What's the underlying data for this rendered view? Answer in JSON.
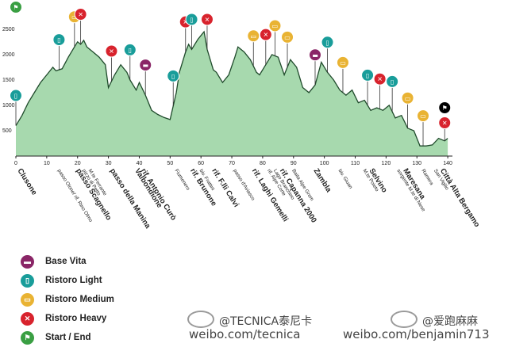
{
  "chart_data": {
    "type": "area",
    "xlim": [
      0,
      141
    ],
    "ylim": [
      0,
      2700
    ],
    "x_ticks": [
      0,
      10,
      20,
      30,
      40,
      50,
      60,
      70,
      80,
      90,
      100,
      110,
      120,
      130,
      140
    ],
    "y_ticks": [
      500,
      1000,
      1500,
      2000,
      2500
    ],
    "grid": false,
    "fill_color": "#a7d9ae",
    "line_color": "#1f4a2b",
    "profile": {
      "x": [
        0,
        2,
        4,
        6,
        8,
        10,
        12,
        13,
        15,
        17,
        19,
        20,
        21,
        22,
        23,
        25,
        27,
        29,
        30,
        32,
        34,
        36,
        37,
        39,
        40,
        42,
        44,
        46,
        48,
        50,
        52,
        53,
        55,
        56,
        57,
        59,
        61,
        62,
        64,
        65,
        67,
        69,
        71,
        72,
        74,
        76,
        78,
        79,
        81,
        83,
        85,
        87,
        89,
        91,
        93,
        95,
        97,
        99,
        101,
        103,
        105,
        107,
        109,
        111,
        113,
        115,
        117,
        119,
        121,
        123,
        125,
        127,
        129,
        131,
        133,
        135,
        137,
        139,
        140
      ],
      "y": [
        600,
        800,
        1050,
        1250,
        1450,
        1600,
        1750,
        1680,
        1720,
        1950,
        2150,
        2250,
        2200,
        2280,
        2150,
        2050,
        1950,
        1800,
        1350,
        1600,
        1800,
        1650,
        1500,
        1300,
        1450,
        1200,
        900,
        820,
        760,
        720,
        1250,
        1650,
        2050,
        2200,
        2100,
        2300,
        2450,
        2100,
        1700,
        1650,
        1450,
        1600,
        1950,
        2150,
        2050,
        1900,
        1650,
        1600,
        1800,
        2000,
        1950,
        1600,
        1900,
        1750,
        1350,
        1250,
        1400,
        1850,
        1650,
        1500,
        1300,
        1200,
        1300,
        1050,
        1100,
        900,
        950,
        900,
        1000,
        750,
        800,
        550,
        500,
        200,
        200,
        220,
        350,
        300,
        350
      ]
    },
    "stops": [
      {
        "km": 0,
        "type": "light",
        "icon": "cup-icon"
      },
      {
        "km": 0,
        "type": "start",
        "icon": "flag-icon"
      },
      {
        "km": 14,
        "type": "light",
        "icon": "cup-icon"
      },
      {
        "km": 19,
        "type": "medium",
        "icon": "tray-icon"
      },
      {
        "km": 21,
        "type": "heavy",
        "icon": "fork-knife-icon"
      },
      {
        "km": 31,
        "type": "heavy",
        "icon": "fork-knife-icon"
      },
      {
        "km": 37,
        "type": "light",
        "icon": "cup-icon"
      },
      {
        "km": 42,
        "type": "base",
        "icon": "bed-icon"
      },
      {
        "km": 51,
        "type": "light",
        "icon": "cup-icon"
      },
      {
        "km": 55,
        "type": "heavy",
        "icon": "fork-knife-icon"
      },
      {
        "km": 57,
        "type": "light",
        "icon": "cup-icon"
      },
      {
        "km": 62,
        "type": "heavy",
        "icon": "fork-knife-icon"
      },
      {
        "km": 77,
        "type": "medium",
        "icon": "tray-icon"
      },
      {
        "km": 81,
        "type": "heavy",
        "icon": "fork-knife-icon"
      },
      {
        "km": 84,
        "type": "medium",
        "icon": "tray-icon"
      },
      {
        "km": 88,
        "type": "medium",
        "icon": "tray-icon"
      },
      {
        "km": 97,
        "type": "base",
        "icon": "bed-icon"
      },
      {
        "km": 101,
        "type": "light",
        "icon": "cup-icon"
      },
      {
        "km": 106,
        "type": "medium",
        "icon": "tray-icon"
      },
      {
        "km": 114,
        "type": "light",
        "icon": "cup-icon"
      },
      {
        "km": 118,
        "type": "heavy",
        "icon": "fork-knife-icon"
      },
      {
        "km": 122,
        "type": "light",
        "icon": "cup-icon"
      },
      {
        "km": 127,
        "type": "medium",
        "icon": "tray-icon"
      },
      {
        "km": 132,
        "type": "medium",
        "icon": "tray-icon"
      },
      {
        "km": 139,
        "type": "heavy",
        "icon": "fork-knife-icon"
      },
      {
        "km": 139,
        "type": "end",
        "icon": "flag-icon"
      }
    ],
    "places": [
      {
        "km": 0,
        "name": "Clusone",
        "level": "major"
      },
      {
        "km": 13,
        "name": "passo Olone/ rif. Rino Olmo",
        "level": "minor"
      },
      {
        "km": 19,
        "name": "passo Scagnello",
        "level": "major"
      },
      {
        "km": 21,
        "name": "pizzo di Petto",
        "level": "minor"
      },
      {
        "km": 23,
        "name": "M.te Ferrante",
        "level": "minor"
      },
      {
        "km": 30,
        "name": "passo della Manina",
        "level": "major"
      },
      {
        "km": 38,
        "name": "Valbondione",
        "level": "major"
      },
      {
        "km": 40,
        "name": "rif. Antonio Curò",
        "level": "major"
      },
      {
        "km": 51,
        "name": "Fiumenero",
        "level": "minor"
      },
      {
        "km": 56,
        "name": "rif. Brunone",
        "level": "major"
      },
      {
        "km": 59,
        "name": "biv. Frattini",
        "level": "minor"
      },
      {
        "km": 63,
        "name": "rif. F.lli Calvi",
        "level": "major"
      },
      {
        "km": 70,
        "name": "passo d'Aviasco",
        "level": "minor"
      },
      {
        "km": 76,
        "name": "rif. Laghi Gemelli",
        "level": "major"
      },
      {
        "km": 81,
        "name": "rif. Alpe Corte",
        "level": "minor"
      },
      {
        "km": 83,
        "name": "Lago Branchino",
        "level": "minor"
      },
      {
        "km": 85,
        "name": "rif. Capanna 2000",
        "level": "major"
      },
      {
        "km": 89,
        "name": "Baita Alpe Grem",
        "level": "minor"
      },
      {
        "km": 96,
        "name": "Zambla",
        "level": "major"
      },
      {
        "km": 104,
        "name": "biv. Giuan",
        "level": "minor"
      },
      {
        "km": 112,
        "name": "M.te Poieto",
        "level": "minor"
      },
      {
        "km": 114,
        "name": "Selvino",
        "level": "major"
      },
      {
        "km": 123,
        "name": "sorgente M.te di Nese",
        "level": "minor"
      },
      {
        "km": 125,
        "name": "Maresana",
        "level": "major"
      },
      {
        "km": 131,
        "name": "Ramera",
        "level": "minor"
      },
      {
        "km": 135,
        "name": "San Vigilio",
        "level": "minor"
      },
      {
        "km": 137,
        "name": "Città Alta Bergamo",
        "level": "major"
      }
    ]
  },
  "legend": [
    {
      "key": "base",
      "label": "Base Vita",
      "color": "#8a2667",
      "icon": "bed-icon"
    },
    {
      "key": "light",
      "label": "Ristoro Light",
      "color": "#199d9a",
      "icon": "cup-icon"
    },
    {
      "key": "medium",
      "label": "Ristoro Medium",
      "color": "#e9b333",
      "icon": "tray-icon"
    },
    {
      "key": "heavy",
      "label": "Ristoro Heavy",
      "color": "#d8232d",
      "icon": "fork-knife-icon"
    },
    {
      "key": "start",
      "label": "Start / End",
      "color": "#3a9f43",
      "icon": "flag-icon"
    }
  ],
  "watermarks": {
    "left_handle": "@TECNICA泰尼卡",
    "left_url": "weibo.com/tecnica",
    "right_handle": "@爱跑麻麻",
    "right_url": "weibo.com/benjamin713"
  }
}
